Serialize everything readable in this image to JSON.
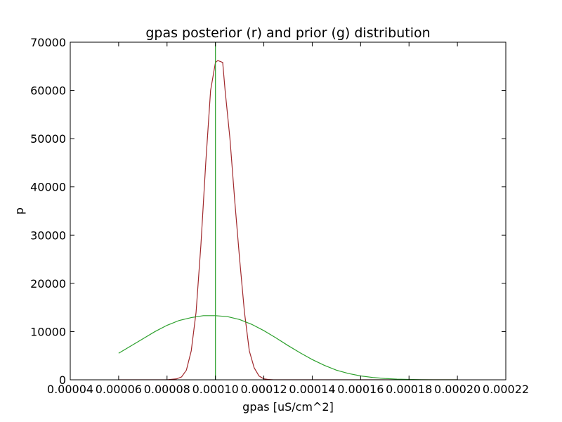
{
  "chart_data": {
    "type": "line",
    "title": "gpas posterior (r) and prior (g) distribution",
    "xlabel": "gpas [uS/cm^2]",
    "ylabel": "p",
    "xlim": [
      4e-05,
      0.00022
    ],
    "ylim": [
      0,
      70000
    ],
    "xticks": [
      "0.00004",
      "0.00006",
      "0.00008",
      "0.00010",
      "0.00012",
      "0.00014",
      "0.00016",
      "0.00018",
      "0.00020",
      "0.00022"
    ],
    "yticks": [
      "0",
      "10000",
      "20000",
      "30000",
      "40000",
      "50000",
      "60000",
      "70000"
    ],
    "grid": false,
    "legend": "none",
    "vline": {
      "x": 0.0001,
      "color": "#2ca02c"
    },
    "series": [
      {
        "color": "#a0282c",
        "x": [
          6e-05,
          7e-05,
          8e-05,
          8.4e-05,
          8.6e-05,
          8.8e-05,
          9e-05,
          9.2e-05,
          9.4e-05,
          9.6e-05,
          9.8e-05,
          0.0001,
          0.000101,
          0.000102,
          0.000103,
          0.000104,
          0.000106,
          0.000108,
          0.00011,
          0.000112,
          0.000114,
          0.000116,
          0.000118,
          0.00012,
          0.000122,
          0.000124,
          0.00013,
          0.00014,
          0.00016,
          0.00018,
          0.0002
        ],
        "y": [
          0,
          0,
          0,
          200,
          600,
          2000,
          6000,
          14000,
          28000,
          45000,
          60000,
          65800,
          66200,
          66000,
          65800,
          60000,
          50000,
          37000,
          25000,
          14000,
          6000,
          2500,
          800,
          200,
          50,
          0,
          0,
          0,
          0,
          0,
          0
        ]
      },
      {
        "color": "#2ca02c",
        "x": [
          6e-05,
          6.5e-05,
          7e-05,
          7.5e-05,
          8e-05,
          8.5e-05,
          9e-05,
          9.5e-05,
          0.0001,
          0.000105,
          0.00011,
          0.000115,
          0.00012,
          0.000125,
          0.00013,
          0.000135,
          0.00014,
          0.000145,
          0.00015,
          0.000155,
          0.00016,
          0.000165,
          0.00017,
          0.000175,
          0.00018,
          0.000185,
          0.00019,
          0.000195,
          0.0002
        ],
        "y": [
          5500,
          7000,
          8500,
          10000,
          11300,
          12300,
          12900,
          13300,
          13300,
          13100,
          12500,
          11500,
          10200,
          8700,
          7100,
          5600,
          4200,
          3000,
          2000,
          1300,
          800,
          480,
          270,
          140,
          70,
          30,
          10,
          5,
          0
        ]
      }
    ]
  }
}
